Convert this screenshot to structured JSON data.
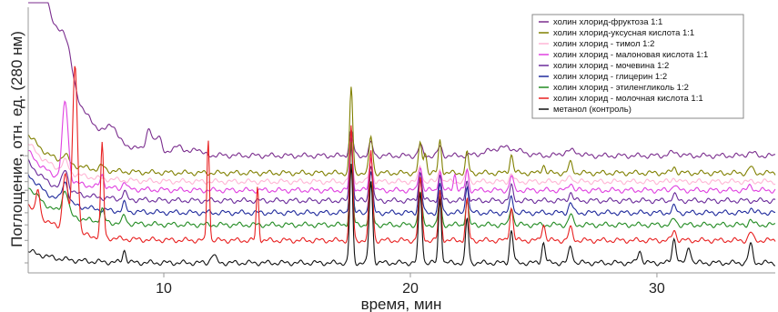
{
  "chart_data": {
    "type": "line",
    "xlabel": "время, мин",
    "ylabel": "Поглощение, отн. ед. (280 нм)",
    "xlim": [
      4.5,
      34.8
    ],
    "xticks": [
      10,
      20,
      30
    ],
    "yticks_labeled": false,
    "grid": false,
    "legend_position": "top-right",
    "series": [
      {
        "name": "холин хлорид-фруктоза 1:1",
        "color": "#7b2e8e",
        "baseline": 62,
        "tail": 12,
        "peaks": [
          [
            4.6,
            1.45,
            0.3
          ],
          [
            6.0,
            0.9,
            0.25
          ],
          [
            7.9,
            0.35,
            0.18
          ],
          [
            9.4,
            0.55,
            0.12
          ],
          [
            9.8,
            0.4,
            0.12
          ],
          [
            10.6,
            0.25,
            0.15
          ],
          [
            11.3,
            0.18,
            0.15
          ],
          [
            17.6,
            0.6,
            0.08
          ],
          [
            18.4,
            0.3,
            0.08
          ],
          [
            20.4,
            0.25,
            0.08
          ],
          [
            21.2,
            0.22,
            0.08
          ],
          [
            23.8,
            0.2,
            0.6
          ],
          [
            26.5,
            0.12,
            0.3
          ],
          [
            30.7,
            0.08,
            0.2
          ],
          [
            33.8,
            0.08,
            0.15
          ]
        ]
      },
      {
        "name": "холин хлорид-уксусная кислота 1:1",
        "color": "#808000",
        "baseline": 52,
        "tail": 1.5,
        "peaks": [
          [
            4.6,
            0.05,
            0.3
          ],
          [
            6.0,
            0.2,
            0.12
          ],
          [
            7.5,
            0.1,
            0.1
          ],
          [
            17.6,
            2.1,
            0.06
          ],
          [
            18.4,
            0.9,
            0.07
          ],
          [
            20.4,
            0.7,
            0.07
          ],
          [
            20.6,
            0.5,
            0.06
          ],
          [
            21.2,
            0.8,
            0.06
          ],
          [
            22.3,
            0.5,
            0.06
          ],
          [
            24.1,
            0.45,
            0.07
          ],
          [
            25.4,
            0.2,
            0.07
          ],
          [
            26.5,
            0.25,
            0.08
          ],
          [
            30.7,
            0.15,
            0.08
          ],
          [
            33.8,
            0.15,
            0.08
          ]
        ]
      },
      {
        "name": "холин хлорид - тимол 1:2",
        "color": "#ffb6d5",
        "baseline": 47,
        "tail": 1.5,
        "peaks": [
          [
            4.6,
            0.05,
            0.3
          ],
          [
            6.0,
            0.25,
            0.12
          ],
          [
            17.6,
            0.8,
            0.06
          ],
          [
            18.4,
            0.5,
            0.07
          ],
          [
            20.4,
            0.4,
            0.07
          ],
          [
            21.2,
            0.35,
            0.06
          ],
          [
            22.3,
            0.3,
            0.06
          ],
          [
            24.1,
            0.2,
            0.07
          ],
          [
            26.5,
            0.15,
            0.08
          ],
          [
            30.7,
            0.1,
            0.08
          ]
        ]
      },
      {
        "name": "холин хлорид - малоновая кислота 1:1",
        "color": "#e040e0",
        "baseline": 42,
        "tail": 1.5,
        "peaks": [
          [
            4.6,
            0.05,
            0.3
          ],
          [
            6.0,
            1.9,
            0.12
          ],
          [
            7.5,
            0.3,
            0.08
          ],
          [
            8.4,
            0.2,
            0.07
          ],
          [
            17.6,
            1.4,
            0.06
          ],
          [
            18.4,
            0.8,
            0.07
          ],
          [
            20.4,
            0.6,
            0.07
          ],
          [
            21.2,
            0.5,
            0.06
          ],
          [
            21.8,
            0.4,
            0.06
          ],
          [
            22.3,
            0.5,
            0.06
          ],
          [
            24.1,
            0.35,
            0.07
          ],
          [
            26.5,
            0.2,
            0.08
          ],
          [
            30.7,
            0.15,
            0.08
          ],
          [
            33.8,
            0.12,
            0.08
          ]
        ]
      },
      {
        "name": "холин хлорид - мочевина 1:2",
        "color": "#6a2a9a",
        "baseline": 36,
        "tail": 1.5,
        "peaks": [
          [
            4.6,
            0.05,
            0.3
          ],
          [
            6.0,
            0.5,
            0.12
          ],
          [
            8.4,
            0.2,
            0.07
          ],
          [
            17.6,
            1.6,
            0.06
          ],
          [
            18.4,
            0.9,
            0.07
          ],
          [
            20.4,
            0.7,
            0.07
          ],
          [
            21.2,
            0.6,
            0.06
          ],
          [
            22.3,
            0.5,
            0.06
          ],
          [
            24.1,
            0.35,
            0.07
          ],
          [
            26.5,
            0.2,
            0.08
          ],
          [
            30.7,
            0.15,
            0.08
          ]
        ]
      },
      {
        "name": "холин хлорид - глицерин 1:2",
        "color": "#1f2a9c",
        "baseline": 29,
        "tail": 1.5,
        "peaks": [
          [
            4.6,
            0.05,
            0.3
          ],
          [
            6.0,
            0.5,
            0.12
          ],
          [
            8.4,
            0.2,
            0.07
          ],
          [
            17.6,
            1.7,
            0.06
          ],
          [
            18.4,
            1.0,
            0.07
          ],
          [
            20.4,
            0.8,
            0.07
          ],
          [
            21.2,
            0.7,
            0.06
          ],
          [
            22.3,
            0.7,
            0.06
          ],
          [
            24.1,
            0.4,
            0.07
          ],
          [
            26.5,
            0.25,
            0.08
          ],
          [
            30.7,
            0.15,
            0.08
          ],
          [
            33.8,
            0.12,
            0.08
          ]
        ]
      },
      {
        "name": "холин хлорид - этиленгликоль 1:2",
        "color": "#228b22",
        "baseline": 22,
        "tail": 1.5,
        "peaks": [
          [
            4.6,
            0.05,
            0.3
          ],
          [
            6.0,
            0.6,
            0.12
          ],
          [
            7.5,
            0.3,
            0.08
          ],
          [
            8.4,
            0.2,
            0.07
          ],
          [
            17.6,
            2.0,
            0.06
          ],
          [
            18.4,
            1.0,
            0.07
          ],
          [
            20.4,
            0.8,
            0.07
          ],
          [
            21.2,
            0.7,
            0.06
          ],
          [
            22.3,
            0.6,
            0.06
          ],
          [
            24.1,
            0.45,
            0.07
          ],
          [
            26.5,
            0.25,
            0.08
          ],
          [
            30.7,
            0.15,
            0.08
          ],
          [
            33.8,
            0.12,
            0.08
          ]
        ]
      },
      {
        "name": "холин хлорид - молочная кислота 1:1",
        "color": "#e82020",
        "baseline": 13,
        "tail": 1.5,
        "peaks": [
          [
            4.9,
            0.6,
            0.07
          ],
          [
            6.0,
            1.4,
            0.1
          ],
          [
            6.4,
            4.1,
            0.1
          ],
          [
            7.5,
            2.3,
            0.06
          ],
          [
            11.8,
            2.5,
            0.05
          ],
          [
            13.8,
            1.3,
            0.05
          ],
          [
            17.6,
            2.8,
            0.06
          ],
          [
            18.4,
            2.2,
            0.07
          ],
          [
            20.4,
            1.5,
            0.07
          ],
          [
            21.2,
            1.2,
            0.06
          ],
          [
            22.3,
            1.0,
            0.06
          ],
          [
            24.1,
            0.8,
            0.07
          ],
          [
            25.4,
            0.4,
            0.07
          ],
          [
            26.5,
            0.3,
            0.08
          ],
          [
            30.7,
            0.25,
            0.08
          ],
          [
            33.8,
            0.2,
            0.08
          ]
        ]
      },
      {
        "name": "метанол (контроль)",
        "color": "#111111",
        "baseline": 0,
        "tail": 0.5,
        "peaks": [
          [
            8.4,
            0.3,
            0.07
          ],
          [
            12.0,
            0.2,
            0.1
          ],
          [
            17.6,
            2.4,
            0.06
          ],
          [
            18.4,
            2.0,
            0.07
          ],
          [
            20.4,
            1.7,
            0.07
          ],
          [
            21.2,
            1.6,
            0.06
          ],
          [
            22.3,
            1.1,
            0.06
          ],
          [
            24.1,
            0.8,
            0.07
          ],
          [
            25.4,
            0.5,
            0.07
          ],
          [
            26.5,
            0.4,
            0.08
          ],
          [
            29.3,
            0.3,
            0.08
          ],
          [
            30.7,
            0.6,
            0.08
          ],
          [
            31.3,
            0.4,
            0.08
          ],
          [
            33.8,
            0.45,
            0.08
          ]
        ]
      }
    ]
  }
}
